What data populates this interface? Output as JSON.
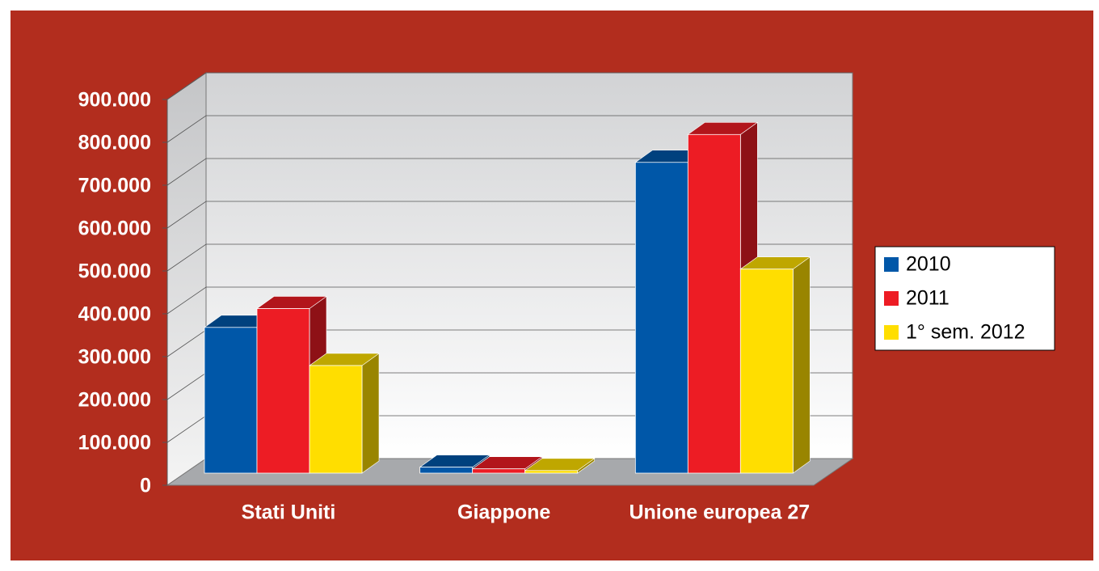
{
  "chart_data": {
    "type": "bar3d",
    "categories": [
      "Stati Uniti",
      "Giappone",
      "Unione europea 27"
    ],
    "series": [
      {
        "name": "2010",
        "color": "#0057a8",
        "values": [
          340000,
          14000,
          725000
        ]
      },
      {
        "name": "2011",
        "color": "#ed1c24",
        "values": [
          384000,
          10000,
          790000
        ]
      },
      {
        "name": "1° sem. 2012",
        "color": "#ffde00",
        "values": [
          251000,
          6000,
          476000
        ]
      }
    ],
    "ylim": [
      0,
      900000
    ],
    "yticks": [
      0,
      {
        "value": 100000,
        "label": "100.000"
      },
      {
        "value": 200000,
        "label": "200.000"
      },
      {
        "value": 300000,
        "label": "300.000"
      },
      {
        "value": 400000,
        "label": "400.000"
      },
      {
        "value": 500000,
        "label": "500.000"
      },
      {
        "value": 600000,
        "label": "600.000"
      },
      {
        "value": 700000,
        "label": "700.000"
      },
      {
        "value": 800000,
        "label": "800.000"
      },
      {
        "value": 900000,
        "label": "900.000"
      }
    ],
    "grid": true,
    "legend": "right"
  }
}
